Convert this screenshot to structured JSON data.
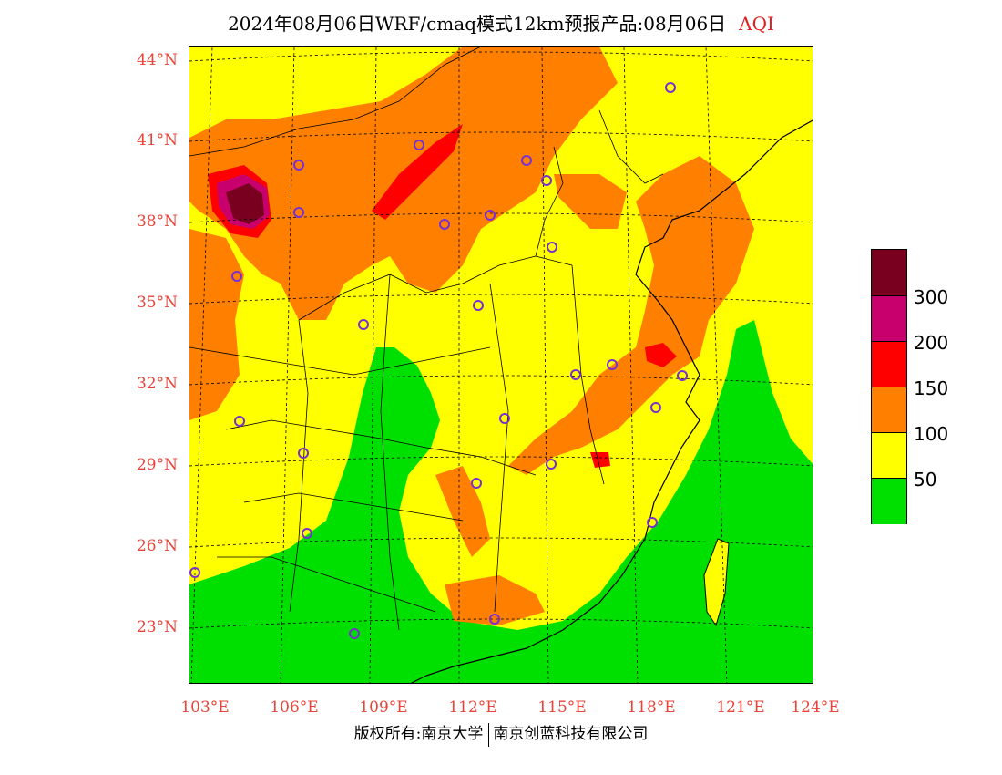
{
  "title": {
    "main": "2024年08月06日WRF/cmaq模式12km预报产品:08月06日",
    "product": "AQI"
  },
  "axes": {
    "lat_labels": [
      "44°N",
      "41°N",
      "38°N",
      "35°N",
      "32°N",
      "29°N",
      "26°N",
      "23°N"
    ],
    "lon_labels": [
      "103°E",
      "106°E",
      "109°E",
      "112°E",
      "115°E",
      "118°E",
      "121°E",
      "124°E"
    ]
  },
  "legend": {
    "labels": [
      "300",
      "200",
      "150",
      "100",
      "50"
    ],
    "colors": {
      "above_300": "#7a0020",
      "200_300": "#c8006e",
      "150_200": "#ff0000",
      "100_150": "#ff8000",
      "50_100": "#ffff00",
      "0_50": "#00e000"
    }
  },
  "footer": {
    "copyright": "版权所有:南京大学",
    "company": "南京创蓝科技有限公司"
  },
  "station_marker_color": "#7a30d0"
}
